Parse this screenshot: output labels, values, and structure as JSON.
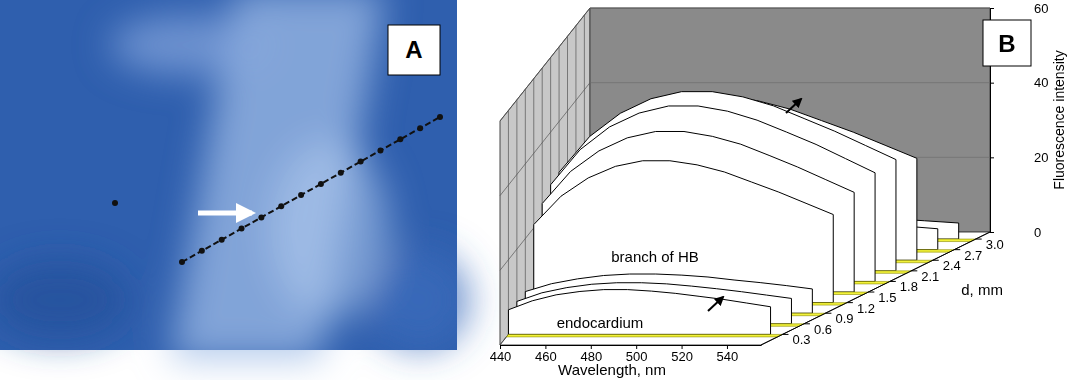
{
  "chart_data": [
    {
      "type": "image",
      "title": "A"
    },
    {
      "type": "waterfall",
      "title": "B",
      "x_label": "Wavelength, nm",
      "z_label": "d, mm",
      "y_label": "Fluorescence intensity",
      "x": [
        440,
        450,
        460,
        470,
        480,
        490,
        500,
        510,
        520,
        530,
        540,
        550
      ],
      "xlim": [
        440,
        555
      ],
      "xticks": [
        440,
        460,
        480,
        500,
        520,
        540
      ],
      "z": [
        0.3,
        0.6,
        0.9,
        1.2,
        1.5,
        1.8,
        2.1,
        2.4,
        2.7,
        3
      ],
      "zlim": [
        0,
        3.2
      ],
      "zticks": [
        0.3,
        0.6,
        0.9,
        1.2,
        1.5,
        1.8,
        2.1,
        2.4,
        2.7,
        {
          "value": 3,
          "label": "3.0"
        }
      ],
      "ylim": [
        0,
        60
      ],
      "yticks": [
        0,
        20,
        40,
        60
      ],
      "grid": true,
      "color": "#ffffff",
      "series": [
        {
          "values": [
            6.6,
            9,
            10.6,
            11.5,
            12,
            12,
            11.6,
            11,
            10.2,
            9.4,
            8.4,
            7.4
          ]
        },
        {
          "values": [
            6,
            8.3,
            9.7,
            10.6,
            11,
            11,
            10.7,
            10.1,
            9.4,
            8.6,
            7.7,
            6.8
          ]
        },
        {
          "values": [
            5.8,
            7.9,
            9.2,
            10.1,
            10.5,
            10.5,
            10.2,
            9.7,
            8.9,
            8.2,
            7.4,
            6.5
          ]
        },
        {
          "values": [
            20.9,
            28.5,
            33.4,
            36.5,
            38,
            38,
            36.9,
            35,
            32.3,
            29.6,
            26.6,
            23.6
          ]
        },
        {
          "values": [
            23.7,
            32.3,
            37.8,
            41.3,
            43,
            43,
            41.7,
            39.6,
            36.6,
            33.5,
            30.1,
            26.7
          ]
        },
        {
          "values": [
            25.9,
            35.3,
            41.4,
            45.1,
            47,
            47,
            45.6,
            43.2,
            40,
            36.7,
            32.9,
            29.1
          ]
        },
        {
          "values": [
            26.4,
            36,
            42.2,
            46.1,
            48,
            48,
            46.6,
            44.2,
            40.8,
            37.4,
            33.6,
            29.8
          ]
        },
        {
          "values": [
            24.2,
            33,
            38.7,
            42.2,
            44,
            44,
            42.7,
            40.5,
            37.4,
            34.3,
            30.8,
            27.3
          ]
        },
        {
          "values": [
            5,
            6.8,
            7.9,
            8.6,
            9,
            9,
            8.7,
            8.3,
            7.7,
            7,
            6.3,
            5.6
          ]
        },
        {
          "values": [
            3.9,
            5.3,
            6.2,
            6.7,
            7,
            7,
            6.8,
            6.4,
            6,
            5.5,
            4.9,
            4.3
          ]
        }
      ],
      "annotations": [
        "branch of HB",
        "endocardium"
      ]
    }
  ]
}
